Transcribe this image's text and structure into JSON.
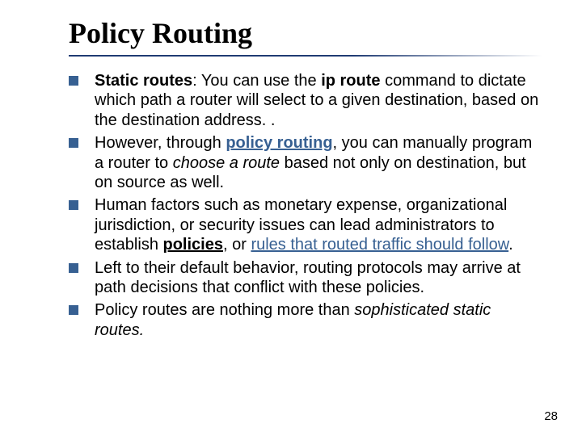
{
  "slide": {
    "title": "Policy Routing",
    "page_number": "28",
    "colors": {
      "bullet_marker": "#376092",
      "title_underline": "#1f3b73",
      "link": "#376092",
      "background": "#ffffff",
      "text": "#000000"
    },
    "typography": {
      "title_font": "Times New Roman",
      "body_font": "Arial",
      "title_fontsize_pt": 27,
      "body_fontsize_pt": 15
    },
    "bullets": [
      {
        "runs": [
          {
            "text": "Static routes",
            "b": true
          },
          {
            "text": ": You can use the "
          },
          {
            "text": "ip route",
            "b": true
          },
          {
            "text": " command to dictate which path a router will select to a given destination, based on the destination address. ."
          }
        ]
      },
      {
        "runs": [
          {
            "text": "However, through "
          },
          {
            "text": "policy routing",
            "b": true,
            "link": true
          },
          {
            "text": ", you can manually program a router to "
          },
          {
            "text": "choose a route",
            "i": true
          },
          {
            "text": " based not only on destination, but on source as well."
          }
        ]
      },
      {
        "runs": [
          {
            "text": "Human factors such as monetary expense, organizational jurisdiction, or security issues can lead administrators to establish "
          },
          {
            "text": "policies",
            "b": true,
            "u": true
          },
          {
            "text": ", or "
          },
          {
            "text": "rules that routed traffic should follow",
            "link": true
          },
          {
            "text": "."
          }
        ]
      },
      {
        "runs": [
          {
            "text": "Left to their default behavior, routing protocols may arrive at path decisions that conflict with these policies."
          }
        ]
      },
      {
        "runs": [
          {
            "text": "Policy routes are nothing more than "
          },
          {
            "text": "sophisticated static routes.",
            "i": true
          }
        ]
      }
    ]
  }
}
